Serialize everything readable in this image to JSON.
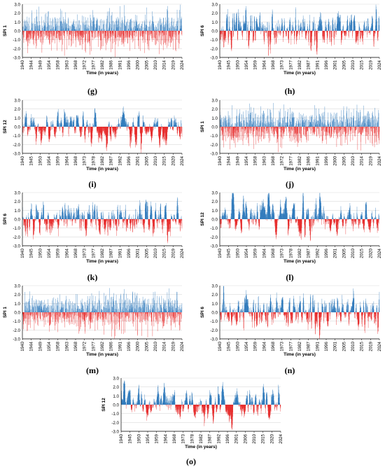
{
  "colors": {
    "positive": "#1f6fb6",
    "negative": "#e41a1a",
    "axis": "#000000",
    "grid": "#d9d9d9"
  },
  "chart_data": [
    {
      "panel": "g",
      "caption": "(g)",
      "type": "bar",
      "ylabel": "SPI 1",
      "xlabel": "Time (in years)",
      "ylim": [
        -3.0,
        3.0
      ],
      "yticks": [
        "3.0",
        "2.0",
        "1.0",
        "0.0",
        "-1.0",
        "-2.0",
        "-3.0"
      ],
      "xticks": [
        "1940",
        "1944",
        "1949",
        "1954",
        "1958",
        "1963",
        "1968",
        "1972",
        "1977",
        "1982",
        "1986",
        "1991",
        "1996",
        "2000",
        "2005",
        "2010",
        "2014",
        "2019",
        "2024"
      ],
      "scale": "1",
      "seed": 11
    },
    {
      "panel": "h",
      "caption": "(h)",
      "type": "bar",
      "ylabel": "SPI 6",
      "xlabel": "Time (in years)",
      "ylim": [
        -3.0,
        3.0
      ],
      "yticks": [
        "3.0",
        "2.0",
        "1.0",
        "0.0",
        "-1.0",
        "-2.0",
        "-3.0"
      ],
      "xticks": [
        "1940",
        "1945",
        "1950",
        "1954",
        "1959",
        "1964",
        "1968",
        "1973",
        "1977",
        "1982",
        "1987",
        "1991",
        "1996",
        "2001",
        "2005",
        "2010",
        "2015",
        "2019",
        "2024"
      ],
      "scale": "6",
      "seed": 23
    },
    {
      "panel": "i",
      "caption": "(i)",
      "type": "bar",
      "ylabel": "SPI 12",
      "xlabel": "Time (in years)",
      "ylim": [
        -3.0,
        3.0
      ],
      "yticks": [
        "3.0",
        "2.0",
        "1.0",
        "0.0",
        "-1.0",
        "-2.0",
        "-3.0"
      ],
      "xticks": [
        "1940",
        "1945",
        "1950",
        "1954",
        "1959",
        "1964",
        "1968",
        "1973",
        "1978",
        "1982",
        "1987",
        "1992",
        "1996",
        "2001",
        "2005",
        "2010",
        "2015",
        "2020",
        "2024"
      ],
      "scale": "12",
      "seed": 37
    },
    {
      "panel": "j",
      "caption": "(j)",
      "type": "bar",
      "ylabel": "SPI 1",
      "xlabel": "Time (in years)",
      "ylim": [
        -3.0,
        3.0
      ],
      "yticks": [
        "3.0",
        "2.0",
        "1.0",
        "0.0",
        "-1.0",
        "-2.0",
        "-3.0"
      ],
      "xticks": [
        "1940",
        "1944",
        "1949",
        "1954",
        "1958",
        "1963",
        "1968",
        "1972",
        "1977",
        "1982",
        "1986",
        "1991",
        "1996",
        "2000",
        "2005",
        "2010",
        "2014",
        "2019",
        "2024"
      ],
      "scale": "1",
      "seed": 41
    },
    {
      "panel": "k",
      "caption": "(k)",
      "type": "bar",
      "ylabel": "SPI 6",
      "xlabel": "Time (in years)",
      "ylim": [
        -3.0,
        3.0
      ],
      "yticks": [
        "3.0",
        "2.0",
        "1.0",
        "0.0",
        "-1.0",
        "-2.0",
        "-3.0"
      ],
      "xticks": [
        "1940",
        "1945",
        "1950",
        "1954",
        "1959",
        "1964",
        "1968",
        "1973",
        "1977",
        "1982",
        "1987",
        "1991",
        "1996",
        "2001",
        "2005",
        "2010",
        "2015",
        "2019",
        "2024"
      ],
      "scale": "6",
      "seed": 53
    },
    {
      "panel": "l",
      "caption": "(l)",
      "type": "bar",
      "ylabel": "SPI 12",
      "xlabel": "Time (in years)",
      "ylim": [
        -3.0,
        3.0
      ],
      "yticks": [
        "3.0",
        "2.0",
        "1.0",
        "0.0",
        "-1.0",
        "-2.0",
        "-3.0"
      ],
      "xticks": [
        "1940",
        "1945",
        "1950",
        "1954",
        "1959",
        "1964",
        "1968",
        "1973",
        "1978",
        "1982",
        "1987",
        "1992",
        "1996",
        "2001",
        "2005",
        "2010",
        "2015",
        "2020",
        "2024"
      ],
      "scale": "12",
      "seed": 67
    },
    {
      "panel": "m",
      "caption": "(m)",
      "type": "bar",
      "ylabel": "SPI 1",
      "xlabel": "Time (in years)",
      "ylim": [
        -3.0,
        3.0
      ],
      "yticks": [
        "3.0",
        "2.0",
        "1.0",
        "0.0",
        "-1.0",
        "-2.0",
        "-3.0"
      ],
      "xticks": [
        "1940",
        "1944",
        "1949",
        "1954",
        "1958",
        "1963",
        "1968",
        "1972",
        "1977",
        "1982",
        "1986",
        "1991",
        "1996",
        "2000",
        "2005",
        "2010",
        "2014",
        "2019",
        "2024"
      ],
      "scale": "1",
      "seed": 71
    },
    {
      "panel": "n",
      "caption": "(n)",
      "type": "bar",
      "ylabel": "SPI 6",
      "xlabel": "Time (in years)",
      "ylim": [
        -3.0,
        3.0
      ],
      "yticks": [
        "3.0",
        "2.0",
        "1.0",
        "0.0",
        "-1.0",
        "-2.0",
        "-3.0"
      ],
      "xticks": [
        "1940",
        "1945",
        "1950",
        "1954",
        "1959",
        "1964",
        "1968",
        "1973",
        "1977",
        "1982",
        "1987",
        "1991",
        "1996",
        "2001",
        "2005",
        "2010",
        "2015",
        "2019",
        "2024"
      ],
      "scale": "6",
      "seed": 83
    },
    {
      "panel": "o",
      "caption": "(o)",
      "type": "bar",
      "ylabel": "SPI 12",
      "xlabel": "Time (in years)",
      "ylim": [
        -3.0,
        3.0
      ],
      "yticks": [
        "3.0",
        "2.0",
        "1.0",
        "0.0",
        "-1.0",
        "-2.0",
        "-3.0"
      ],
      "xticks": [
        "1940",
        "1945",
        "1950",
        "1954",
        "1959",
        "1964",
        "1968",
        "1973",
        "1978",
        "1982",
        "1987",
        "1992",
        "1996",
        "2001",
        "2006",
        "2010",
        "2015",
        "2020",
        "2024"
      ],
      "scale": "12",
      "seed": 97
    }
  ]
}
